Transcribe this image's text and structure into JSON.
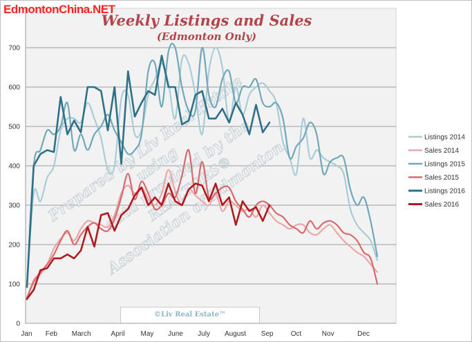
{
  "watermark_top": "EdmontonChina.NET",
  "copyright": "©Liv Real Estate™",
  "diagonal_watermark": [
    "Prepared by Liv Real Estate",
    "using",
    "data provided by the",
    "REALTORS®",
    "Association of Edmonton."
  ],
  "colors": {
    "Listings 2014": "#a9cdd6",
    "Sales 2014": "#eaa6a8",
    "Listings 2015": "#6fa8b8",
    "Sales 2015": "#d9696c",
    "Listings 2016": "#2e7088",
    "Sales 2016": "#b01a1f",
    "title": "#b3454a",
    "plot_background": "#f2f2f2",
    "gridline": "#7f7f7f"
  },
  "chart_data": {
    "type": "line",
    "title": "Weekly Listings and Sales",
    "subtitle": "(Edmonton Only)",
    "xlabel": "",
    "ylabel": "",
    "ylim": [
      0,
      800
    ],
    "yticks": [
      0,
      100,
      200,
      300,
      400,
      500,
      600,
      700
    ],
    "grid": true,
    "legend_position": "right",
    "x_ticklabels": [
      "Jan",
      "Feb",
      "March",
      "April",
      "May",
      "June",
      "July",
      "August",
      "Sep",
      "Oct",
      "Nov",
      "Dec"
    ],
    "x_unit": "week of year",
    "xlim": [
      1,
      53
    ],
    "series": [
      {
        "name": "Listings 2014",
        "smooth": true,
        "width": 2.2,
        "values": [
          95,
          330,
          310,
          370,
          400,
          490,
          520,
          520,
          510,
          560,
          520,
          470,
          390,
          400,
          570,
          580,
          480,
          490,
          580,
          620,
          660,
          610,
          520,
          670,
          660,
          580,
          480,
          640,
          700,
          650,
          510,
          600,
          530,
          580,
          600,
          610,
          590,
          560,
          460,
          420,
          380,
          520,
          420,
          440,
          420,
          410,
          400,
          380,
          290,
          250,
          230,
          210,
          160
        ]
      },
      {
        "name": "Sales 2014",
        "smooth": true,
        "width": 2.2,
        "values": [
          60,
          110,
          125,
          150,
          190,
          215,
          230,
          210,
          240,
          260,
          255,
          250,
          245,
          275,
          330,
          350,
          330,
          345,
          315,
          300,
          330,
          390,
          335,
          300,
          340,
          325,
          310,
          300,
          330,
          285,
          310,
          300,
          285,
          290,
          270,
          300,
          280,
          260,
          250,
          240,
          250,
          250,
          230,
          225,
          240,
          250,
          230,
          210,
          195,
          180,
          170,
          150,
          130
        ]
      },
      {
        "name": "Listings 2015",
        "smooth": true,
        "width": 2.2,
        "values": [
          95,
          400,
          440,
          490,
          480,
          500,
          560,
          440,
          480,
          440,
          480,
          500,
          530,
          490,
          460,
          430,
          440,
          480,
          640,
          660,
          550,
          690,
          700,
          600,
          540,
          540,
          700,
          580,
          550,
          620,
          640,
          560,
          600,
          600,
          620,
          560,
          550,
          560,
          520,
          420,
          450,
          470,
          510,
          480,
          380,
          410,
          420,
          420,
          340,
          300,
          320,
          260,
          170
        ]
      },
      {
        "name": "Sales 2015",
        "smooth": true,
        "width": 2.2,
        "values": [
          65,
          105,
          130,
          150,
          175,
          210,
          235,
          200,
          225,
          245,
          255,
          240,
          235,
          265,
          320,
          380,
          315,
          360,
          330,
          290,
          300,
          330,
          320,
          375,
          440,
          330,
          410,
          320,
          330,
          345,
          345,
          310,
          290,
          270,
          300,
          310,
          300,
          280,
          270,
          250,
          240,
          230,
          260,
          240,
          255,
          260,
          250,
          230,
          225,
          210,
          180,
          165,
          100
        ]
      },
      {
        "name": "Listings 2016",
        "smooth": false,
        "width": 2.6,
        "values": [
          92,
          400,
          430,
          440,
          435,
          575,
          480,
          515,
          485,
          600,
          600,
          590,
          490,
          600,
          405,
          640,
          525,
          560,
          590,
          580,
          680,
          600,
          600,
          505,
          515,
          580,
          590,
          520,
          520,
          545,
          510,
          560,
          530,
          480,
          555,
          485,
          510
        ]
      },
      {
        "name": "Sales 2016",
        "smooth": false,
        "width": 2.6,
        "values": [
          62,
          85,
          135,
          140,
          165,
          165,
          175,
          165,
          185,
          245,
          195,
          275,
          280,
          235,
          275,
          290,
          325,
          345,
          300,
          320,
          300,
          355,
          310,
          300,
          340,
          355,
          350,
          310,
          355,
          300,
          320,
          250,
          310,
          285,
          295,
          260,
          300
        ]
      }
    ]
  }
}
